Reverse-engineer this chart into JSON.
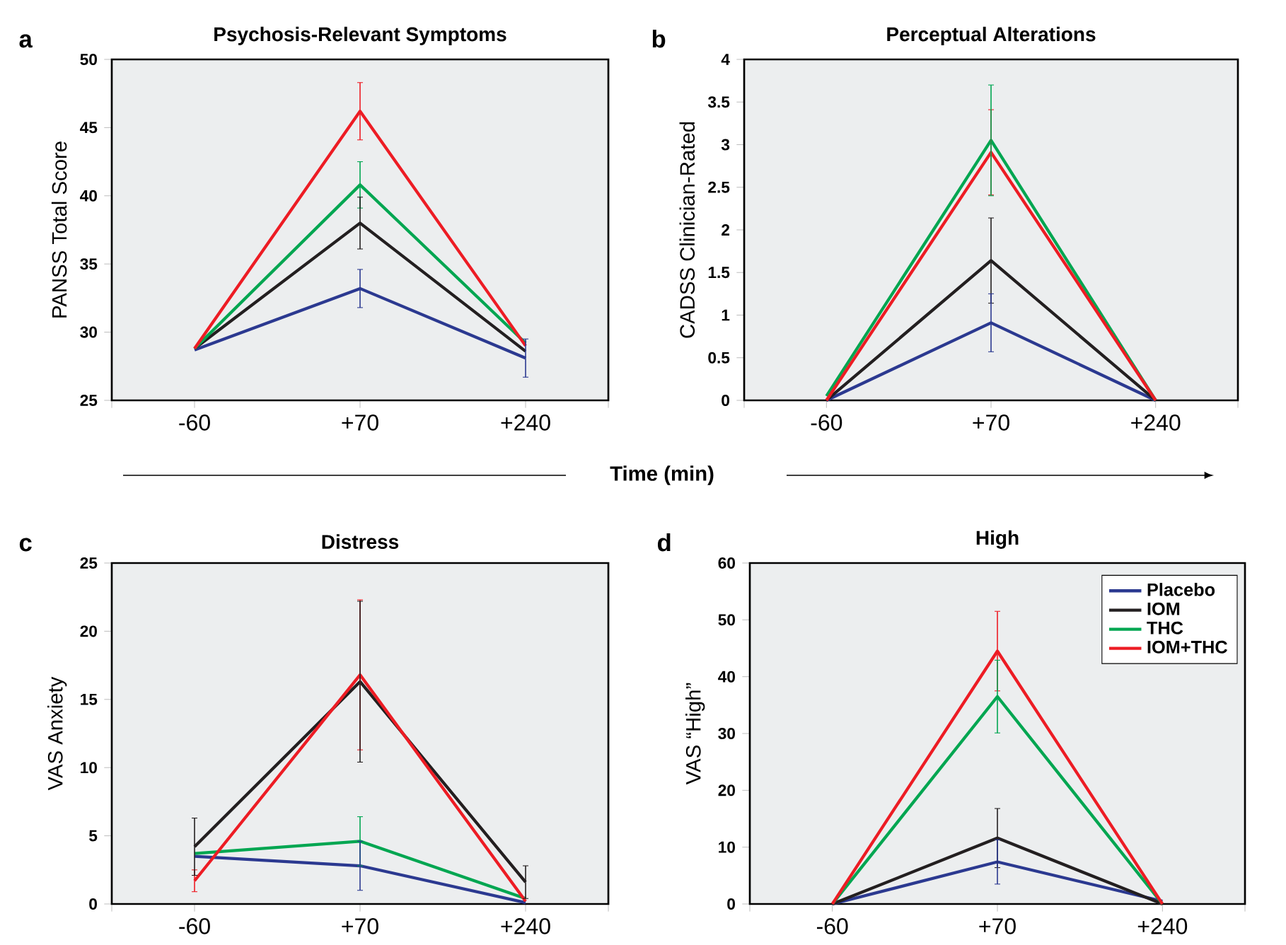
{
  "chart_data": [
    {
      "type": "line",
      "title": "Psychosis-Relevant Symptoms",
      "ylabel": "PANSS Total Score",
      "xlabel": "Time (min)",
      "annotations": [
        "a"
      ],
      "categories": [
        "-60",
        "+70",
        "+240"
      ],
      "ylim": [
        25,
        50
      ],
      "yticks": [
        25,
        30,
        35,
        40,
        45,
        50
      ],
      "series": [
        {
          "color": "#2b3990",
          "values": [
            28.7,
            33.2,
            28.1
          ],
          "errors": [
            null,
            1.4,
            1.4
          ]
        },
        {
          "color": "#231f20",
          "values": [
            28.8,
            38.0,
            28.6
          ],
          "errors": [
            null,
            1.9,
            null
          ]
        },
        {
          "color": "#00a651",
          "values": [
            28.8,
            40.8,
            29.2
          ],
          "errors": [
            null,
            1.7,
            null
          ]
        },
        {
          "color": "#ed1c24",
          "values": [
            28.8,
            46.2,
            29.0
          ],
          "errors": [
            null,
            2.1,
            null
          ]
        }
      ]
    },
    {
      "type": "line",
      "title": "Perceptual Alterations",
      "ylabel": "CADSS Clinician-Rated",
      "annotations": [
        "b"
      ],
      "categories": [
        "-60",
        "+70",
        "+240"
      ],
      "ylim": [
        0,
        4
      ],
      "yticks": [
        0,
        {
          "value": 0.5,
          "label": "0.5"
        },
        1,
        {
          "value": 1.5,
          "label": "1.5"
        },
        2,
        {
          "value": 2.5,
          "label": "2.5"
        },
        3,
        {
          "value": 3.5,
          "label": "3.5"
        },
        4
      ],
      "series": [
        {
          "color": "#2b3990",
          "values": [
            0,
            0.91,
            0
          ],
          "errors": [
            null,
            0.34,
            null
          ]
        },
        {
          "color": "#231f20",
          "values": [
            0,
            1.64,
            0
          ],
          "errors": [
            null,
            0.5,
            null
          ]
        },
        {
          "color": "#00a651",
          "values": [
            0.05,
            3.05,
            0
          ],
          "errors": [
            null,
            0.65,
            null
          ]
        },
        {
          "color": "#ed1c24",
          "values": [
            0,
            2.91,
            0
          ],
          "errors": [
            null,
            0.5,
            null
          ]
        }
      ]
    },
    {
      "type": "line",
      "title": "Distress",
      "ylabel": "VAS Anxiety",
      "annotations": [
        "c"
      ],
      "categories": [
        "-60",
        "+70",
        "+240"
      ],
      "ylim": [
        0,
        25
      ],
      "yticks": [
        0,
        5,
        10,
        15,
        20,
        25
      ],
      "series": [
        {
          "color": "#2b3990",
          "values": [
            3.5,
            2.8,
            0.1
          ],
          "errors": [
            null,
            1.8,
            null
          ]
        },
        {
          "color": "#231f20",
          "values": [
            4.2,
            16.3,
            1.6
          ],
          "errors": [
            2.1,
            5.9,
            1.2
          ]
        },
        {
          "color": "#00a651",
          "values": [
            3.7,
            4.6,
            0.4
          ],
          "errors": [
            null,
            1.8,
            null
          ]
        },
        {
          "color": "#ed1c24",
          "values": [
            1.7,
            16.8,
            0.2
          ],
          "errors": [
            0.8,
            5.5,
            null
          ]
        }
      ]
    },
    {
      "type": "line",
      "title": "High",
      "ylabel": "VAS “High”",
      "annotations": [
        "d"
      ],
      "categories": [
        "-60",
        "+70",
        "+240"
      ],
      "ylim": [
        0,
        60
      ],
      "yticks": [
        0,
        10,
        20,
        30,
        40,
        50,
        60
      ],
      "legend": "top right",
      "series": [
        {
          "name": "Placebo",
          "color": "#2b3990",
          "values": [
            0,
            7.4,
            0.5
          ],
          "errors": [
            null,
            3.9,
            null
          ]
        },
        {
          "name": "IOM",
          "color": "#231f20",
          "values": [
            0,
            11.6,
            0
          ],
          "errors": [
            null,
            5.2,
            null
          ]
        },
        {
          "name": "THC",
          "color": "#00a651",
          "values": [
            0,
            36.5,
            0
          ],
          "errors": [
            null,
            6.4,
            null
          ]
        },
        {
          "name": "IOM+THC",
          "color": "#ed1c24",
          "values": [
            0,
            44.5,
            0
          ],
          "errors": [
            null,
            7.0,
            null
          ]
        }
      ]
    }
  ]
}
